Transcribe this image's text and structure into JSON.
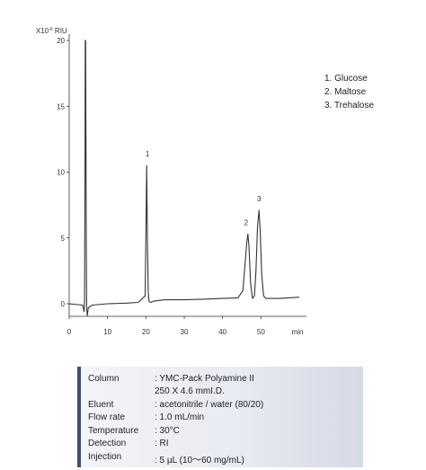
{
  "chart_data": {
    "type": "line",
    "xlabel": "min",
    "ylabel": "X10-6 RIU",
    "ylabel_base": "X10",
    "ylabel_exp": "-6",
    "ylabel_unit": "RIU",
    "xlim": [
      0,
      60
    ],
    "ylim": [
      -1,
      20
    ],
    "x_ticks": [
      "0",
      "10",
      "20",
      "30",
      "40",
      "50",
      "min"
    ],
    "y_ticks": [
      "0",
      "5",
      "10",
      "15",
      "20"
    ],
    "series": [
      {
        "x": [
          0,
          3.5,
          3.9,
          4.0,
          4.1,
          4.2,
          4.3,
          4.45,
          4.55,
          4.7,
          5.0,
          6,
          10,
          15,
          18,
          19.8,
          20.0,
          20.2,
          20.4,
          20.6,
          20.8,
          21.2,
          22,
          25,
          30,
          35,
          40,
          44,
          45.3,
          45.8,
          46.3,
          46.6,
          46.9,
          47.3,
          47.8,
          48.3,
          48.7,
          49.1,
          49.5,
          49.8,
          50.2,
          50.7,
          51.3,
          52,
          55,
          60
        ],
        "y": [
          0,
          -0.1,
          -0.6,
          0.3,
          8.0,
          20.0,
          20.0,
          5.0,
          -0.3,
          -0.9,
          -0.3,
          -0.1,
          0.0,
          0.05,
          0.1,
          0.6,
          5.0,
          10.5,
          5.0,
          1.0,
          0.2,
          0.1,
          0.2,
          0.3,
          0.3,
          0.35,
          0.4,
          0.45,
          1.0,
          2.8,
          4.6,
          5.3,
          4.3,
          1.6,
          0.4,
          0.6,
          2.5,
          5.8,
          7.1,
          5.6,
          2.2,
          0.6,
          0.4,
          0.4,
          0.4,
          0.5
        ]
      }
    ],
    "peak_labels": [
      {
        "text": "1",
        "x": 20.4,
        "y": 10.5
      },
      {
        "text": "2",
        "x": 46.6,
        "y": 5.3
      },
      {
        "text": "3",
        "x": 49.5,
        "y": 7.1
      }
    ]
  },
  "legend": [
    "1. Glucose",
    "2. Maltose",
    "3. Trehalose"
  ],
  "conditions": [
    {
      "label": "Column",
      "value": ": YMC-Pack Polyamine II"
    },
    {
      "label": "",
      "value": "  250 X 4.6 mmI.D."
    },
    {
      "label": "Eluent",
      "value": ": acetonitrile / water (80/20)"
    },
    {
      "label": "Flow rate",
      "value": ": 1.0 mL/min"
    },
    {
      "label": "Temperature",
      "value": ": 30°C"
    },
    {
      "label": "Detection",
      "value": ": RI"
    },
    {
      "label": "Injection",
      "value": ": 5 µL (10〜60 mg/mL)"
    }
  ],
  "colors": {
    "trace": "#333333",
    "accent": "#3f4d78"
  }
}
